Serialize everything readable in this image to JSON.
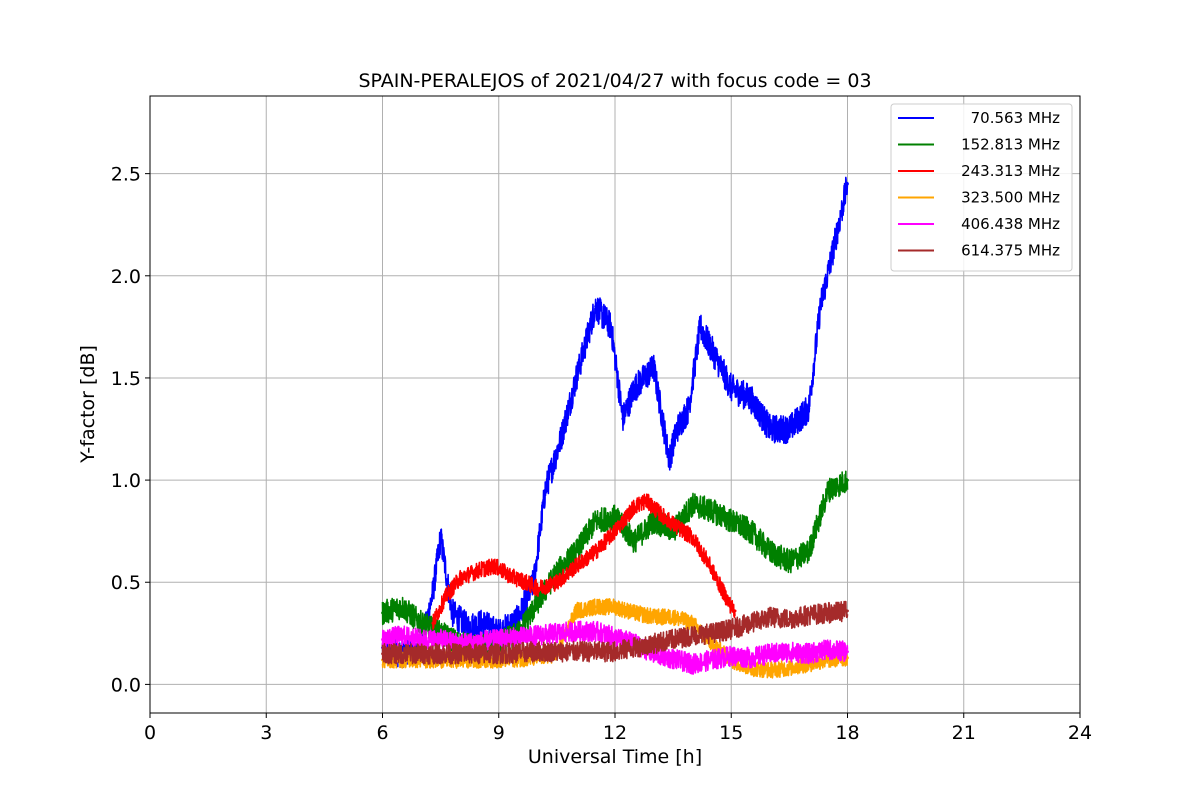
{
  "chart_data": {
    "type": "line",
    "title": "SPAIN-PERALEJOS of 2021/04/27 with focus code = 03",
    "xlabel": "Universal Time [h]",
    "ylabel": "Y-factor [dB]",
    "xlim": [
      0,
      24
    ],
    "ylim": [
      -0.14,
      2.88
    ],
    "xticks": [
      0,
      3,
      6,
      9,
      12,
      15,
      18,
      21,
      24
    ],
    "xtick_labels": [
      "0",
      "3",
      "6",
      "9",
      "12",
      "15",
      "18",
      "21",
      "24"
    ],
    "yticks": [
      0.0,
      0.5,
      1.0,
      1.5,
      2.0,
      2.5
    ],
    "ytick_labels": [
      "0.0",
      "0.5",
      "1.0",
      "1.5",
      "2.0",
      "2.5"
    ],
    "grid": true,
    "legend_position": "top-right",
    "series": [
      {
        "name": "70.563 MHz",
        "color": "#0000ff",
        "noise": 0.07,
        "x": [
          6.0,
          6.5,
          7.0,
          7.3,
          7.5,
          7.8,
          8.2,
          8.6,
          9.0,
          9.5,
          9.9,
          10.2,
          10.6,
          11.0,
          11.5,
          11.9,
          12.2,
          12.5,
          13.0,
          13.4,
          13.6,
          13.9,
          14.2,
          14.6,
          15.0,
          15.5,
          16.0,
          16.5,
          17.0,
          17.3,
          17.6,
          18.0
        ],
        "y": [
          0.18,
          0.15,
          0.18,
          0.45,
          0.72,
          0.35,
          0.28,
          0.3,
          0.25,
          0.32,
          0.5,
          0.95,
          1.2,
          1.5,
          1.85,
          1.75,
          1.3,
          1.45,
          1.55,
          1.1,
          1.25,
          1.35,
          1.75,
          1.6,
          1.45,
          1.4,
          1.25,
          1.25,
          1.35,
          1.85,
          2.1,
          2.45
        ]
      },
      {
        "name": "152.813 MHz",
        "color": "#008000",
        "noise": 0.06,
        "x": [
          6.0,
          6.5,
          7.0,
          7.5,
          8.0,
          8.5,
          9.0,
          9.5,
          10.0,
          10.5,
          11.0,
          11.5,
          12.0,
          12.5,
          13.0,
          13.5,
          14.0,
          14.5,
          15.0,
          15.5,
          16.0,
          16.5,
          17.0,
          17.5,
          18.0
        ],
        "y": [
          0.35,
          0.38,
          0.3,
          0.25,
          0.2,
          0.18,
          0.2,
          0.25,
          0.4,
          0.55,
          0.65,
          0.8,
          0.82,
          0.7,
          0.8,
          0.75,
          0.88,
          0.85,
          0.8,
          0.75,
          0.65,
          0.6,
          0.65,
          0.95,
          1.0
        ]
      },
      {
        "name": "243.313 MHz",
        "color": "#ff0000",
        "noise": 0.04,
        "x": [
          7.3,
          7.6,
          8.0,
          8.5,
          8.9,
          9.3,
          9.7,
          10.0,
          10.5,
          11.0,
          11.5,
          12.0,
          12.5,
          12.8,
          13.2,
          13.6,
          14.0,
          14.4,
          14.8,
          15.0,
          15.1
        ],
        "y": [
          0.3,
          0.42,
          0.52,
          0.56,
          0.58,
          0.53,
          0.5,
          0.47,
          0.5,
          0.58,
          0.65,
          0.75,
          0.87,
          0.9,
          0.83,
          0.77,
          0.72,
          0.6,
          0.45,
          0.38,
          0.36
        ]
      },
      {
        "name": "323.500 MHz",
        "color": "#ffa500",
        "noise": 0.04,
        "x": [
          6.0,
          7.0,
          8.0,
          9.0,
          10.0,
          10.5,
          11.0,
          11.5,
          12.0,
          12.5,
          13.0,
          13.5,
          14.0,
          14.5,
          15.0,
          15.5,
          16.0,
          16.5,
          17.0,
          17.5,
          18.0
        ],
        "y": [
          0.12,
          0.12,
          0.12,
          0.12,
          0.13,
          0.15,
          0.36,
          0.38,
          0.38,
          0.35,
          0.33,
          0.33,
          0.3,
          0.2,
          0.12,
          0.08,
          0.07,
          0.08,
          0.1,
          0.12,
          0.13
        ]
      },
      {
        "name": "406.438 MHz",
        "color": "#ff00ff",
        "noise": 0.05,
        "x": [
          6.0,
          6.5,
          7.0,
          7.5,
          8.0,
          9.0,
          10.0,
          11.0,
          11.5,
          12.0,
          12.5,
          13.0,
          14.0,
          14.5,
          15.0,
          15.5,
          16.0,
          16.5,
          17.0,
          17.5,
          18.0
        ],
        "y": [
          0.22,
          0.24,
          0.22,
          0.22,
          0.2,
          0.22,
          0.24,
          0.26,
          0.26,
          0.23,
          0.2,
          0.15,
          0.1,
          0.12,
          0.14,
          0.13,
          0.15,
          0.16,
          0.15,
          0.17,
          0.16
        ]
      },
      {
        "name": "614.375 MHz",
        "color": "#a52a2a",
        "noise": 0.05,
        "x": [
          6.0,
          7.0,
          8.0,
          9.0,
          10.0,
          11.0,
          12.0,
          12.5,
          13.0,
          13.5,
          14.0,
          14.5,
          15.0,
          15.5,
          16.0,
          16.5,
          17.0,
          17.5,
          18.0
        ],
        "y": [
          0.15,
          0.15,
          0.15,
          0.15,
          0.16,
          0.16,
          0.16,
          0.18,
          0.2,
          0.22,
          0.24,
          0.25,
          0.27,
          0.3,
          0.33,
          0.32,
          0.34,
          0.35,
          0.36
        ]
      }
    ]
  }
}
